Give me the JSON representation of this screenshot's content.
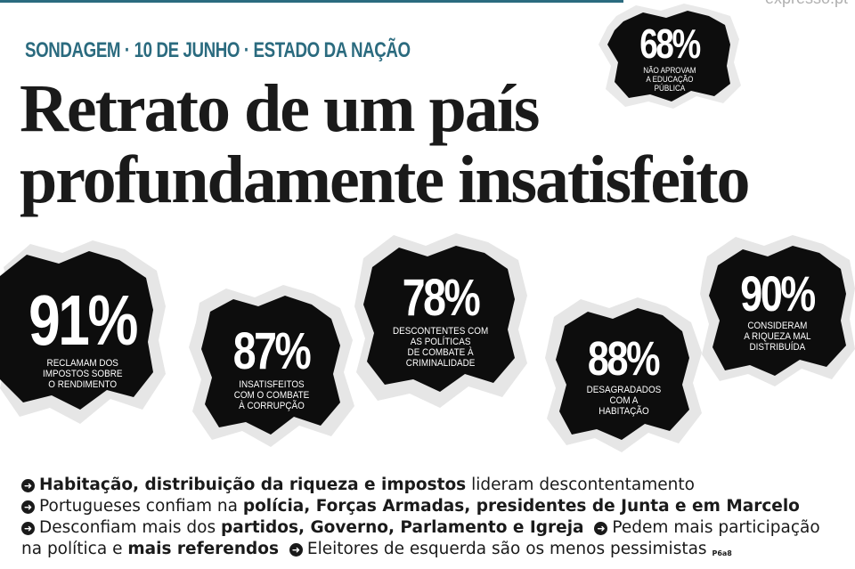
{
  "site": "expresso.pt",
  "kicker": "SONDAGEM · 10 DE JUNHO · ESTADO DA NAÇÃO",
  "headline": {
    "line1": "Retrato de um país",
    "line2": "profundamente insatisfeito"
  },
  "stats": [
    {
      "value": "68%",
      "caption": "NÃO APROVAM\nA EDUCAÇÃO\nPÚBLICA"
    },
    {
      "value": "91%",
      "caption": "RECLAMAM DOS\nIMPOSTOS SOBRE\nO RENDIMENTO"
    },
    {
      "value": "87%",
      "caption": "INSATISFEITOS\nCOM O COMBATE\nÀ CORRUPÇÃO"
    },
    {
      "value": "78%",
      "caption": "DESCONTENTES COM\nAS POLÍTICAS\nDE COMBATE À\nCRIMINALIDADE"
    },
    {
      "value": "88%",
      "caption": "DESAGRADADOS\nCOM A\nHABITAÇÃO"
    },
    {
      "value": "90%",
      "caption": "CONSIDERAM\nA RIQUEZA MAL\nDISTRIBUÍDA"
    }
  ],
  "bullets": {
    "b1_bold": "Habitação, distribuição da riqueza e impostos",
    "b1_rest": " lideram descontentamento",
    "b2_pre": "Portugueses confiam na ",
    "b2_bold": "polícia, Forças Armadas, presidentes de Junta e em Marcelo",
    "b3_pre": "Desconfiam mais dos ",
    "b3_bold": "partidos, Governo, Parlamento e Igreja",
    "b4_pre": "Pedem mais participação",
    "b4_pre2": "na política e ",
    "b4_bold": "mais referendos",
    "b5": "Eleitores de esquerda são os menos pessimistas",
    "page_ref": "P6a8"
  },
  "icons": {
    "bullet": "circle-arrow-right-icon"
  }
}
